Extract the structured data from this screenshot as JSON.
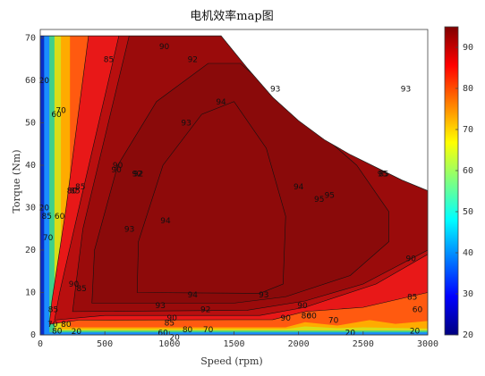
{
  "chart_data": {
    "type": "heatmap",
    "title": "电机效率map图",
    "xlabel": "Speed (rpm)",
    "ylabel": "Torque (Nm)",
    "xlim": [
      0,
      3000
    ],
    "ylim": [
      0,
      72
    ],
    "xticks": [
      "0",
      "500",
      "1000",
      "1500",
      "2000",
      "2500",
      "3000"
    ],
    "yticks": [
      "0",
      "10",
      "20",
      "30",
      "40",
      "50",
      "60",
      "70"
    ],
    "colorbar": {
      "range": [
        20,
        95
      ],
      "ticks": [
        "20",
        "30",
        "40",
        "50",
        "60",
        "70",
        "80",
        "90"
      ]
    },
    "levels": [
      20,
      60,
      70,
      80,
      85,
      90,
      92,
      93,
      94
    ],
    "level_colors": [
      "#0a2dc8",
      "#1a8cff",
      "#3fd08a",
      "#d9dd18",
      "#ffab00",
      "#ff5a10",
      "#e81818",
      "#b80f0f",
      "#9a0b0b",
      "#8a0a0a"
    ],
    "torque_limit": {
      "speed": [
        0,
        1400,
        1600,
        1800,
        2000,
        2200,
        2400,
        2600,
        2800,
        3000
      ],
      "torque": [
        70.5,
        70.5,
        63,
        56,
        50.5,
        46,
        42.5,
        39.5,
        36.5,
        34
      ]
    },
    "contour_labels": [
      {
        "text": "20",
        "x": 30,
        "y": 60
      },
      {
        "text": "20",
        "x": 30,
        "y": 30
      },
      {
        "text": "60",
        "x": 125,
        "y": 52
      },
      {
        "text": "70",
        "x": 160,
        "y": 53
      },
      {
        "text": "80",
        "x": 245,
        "y": 34
      },
      {
        "text": "85",
        "x": 530,
        "y": 65
      },
      {
        "text": "85",
        "x": 310,
        "y": 35
      },
      {
        "text": "90",
        "x": 960,
        "y": 68
      },
      {
        "text": "90",
        "x": 600,
        "y": 40
      },
      {
        "text": "92",
        "x": 1180,
        "y": 65
      },
      {
        "text": "92",
        "x": 760,
        "y": 38
      },
      {
        "text": "93",
        "x": 1820,
        "y": 58
      },
      {
        "text": "93",
        "x": 1130,
        "y": 50
      },
      {
        "text": "94",
        "x": 1400,
        "y": 55
      },
      {
        "text": "94",
        "x": 2000,
        "y": 35
      },
      {
        "text": "94",
        "x": 970,
        "y": 27
      },
      {
        "text": "95",
        "x": 2240,
        "y": 33
      },
      {
        "text": "95",
        "x": 2650,
        "y": 38
      },
      {
        "text": "94",
        "x": 1180,
        "y": 9.5
      },
      {
        "text": "93",
        "x": 1730,
        "y": 9.5
      },
      {
        "text": "93",
        "x": 930,
        "y": 7
      },
      {
        "text": "92",
        "x": 1280,
        "y": 6
      },
      {
        "text": "90",
        "x": 1020,
        "y": 4
      },
      {
        "text": "85",
        "x": 1000,
        "y": 2.8
      },
      {
        "text": "80",
        "x": 1140,
        "y": 1.3
      },
      {
        "text": "70",
        "x": 1300,
        "y": 1.3
      },
      {
        "text": "60",
        "x": 950,
        "y": 0.5
      },
      {
        "text": "20",
        "x": 1040,
        "y": -0.5
      },
      {
        "text": "85",
        "x": 320,
        "y": 11
      },
      {
        "text": "90",
        "x": 260,
        "y": 12
      },
      {
        "text": "70",
        "x": 60,
        "y": 23
      },
      {
        "text": "60",
        "x": 150,
        "y": 28
      },
      {
        "text": "85",
        "x": 270,
        "y": 34
      },
      {
        "text": "90",
        "x": 590,
        "y": 39
      },
      {
        "text": "92",
        "x": 750,
        "y": 38
      },
      {
        "text": "93",
        "x": 690,
        "y": 25
      },
      {
        "text": "90",
        "x": 2870,
        "y": 18
      },
      {
        "text": "85",
        "x": 2880,
        "y": 9
      },
      {
        "text": "60",
        "x": 2920,
        "y": 6
      },
      {
        "text": "90",
        "x": 2030,
        "y": 7
      },
      {
        "text": "80",
        "x": 2060,
        "y": 4.5
      },
      {
        "text": "70",
        "x": 2270,
        "y": 3.5
      },
      {
        "text": "20",
        "x": 2400,
        "y": 0.5
      },
      {
        "text": "20",
        "x": 2900,
        "y": 1
      },
      {
        "text": "90",
        "x": 1900,
        "y": 4
      },
      {
        "text": "60",
        "x": 2100,
        "y": 4.5
      },
      {
        "text": "95",
        "x": 2160,
        "y": 32
      },
      {
        "text": "85",
        "x": 2660,
        "y": 38
      },
      {
        "text": "93",
        "x": 2830,
        "y": 58
      },
      {
        "text": "70",
        "x": 95,
        "y": 2.5
      },
      {
        "text": "80",
        "x": 200,
        "y": 2.5
      },
      {
        "text": "85",
        "x": 100,
        "y": 6
      },
      {
        "text": "80",
        "x": 130,
        "y": 1
      },
      {
        "text": "20",
        "x": 280,
        "y": 0.8
      },
      {
        "text": "85",
        "x": 50,
        "y": 28
      }
    ]
  }
}
